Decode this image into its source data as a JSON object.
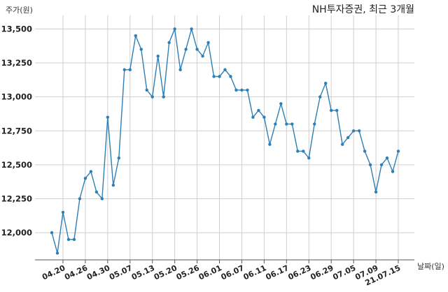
{
  "chart_data": {
    "type": "line",
    "title": "NH투자증권, 최근 3개월",
    "ylabel": "주가(원)",
    "xlabel": "날짜(일)",
    "ylim": [
      11800,
      13600
    ],
    "yticks": [
      12000,
      12250,
      12500,
      12750,
      13000,
      13250,
      13500
    ],
    "ytick_labels": [
      "12,000",
      "12,250",
      "12,500",
      "12,750",
      "13,000",
      "13,250",
      "13,500"
    ],
    "xtick_labels": [
      "04.20",
      "04.26",
      "04.30",
      "05.07",
      "05.13",
      "05.20",
      "05.26",
      "06.01",
      "06.07",
      "06.11",
      "06.17",
      "06.23",
      "06.29",
      "07.05",
      "07.09",
      "21.07.15"
    ],
    "xtick_indices": [
      2,
      6,
      10,
      14,
      18,
      22,
      26,
      30,
      34,
      38,
      42,
      46,
      50,
      54,
      58,
      62
    ],
    "grid": true,
    "color": "#2f7fb5",
    "series": [
      {
        "values": [
          12000,
          11850,
          12150,
          11950,
          11950,
          12250,
          12400,
          12450,
          12300,
          12250,
          12850,
          12350,
          12550,
          13200,
          13200,
          13450,
          13350,
          13050,
          13000,
          13300,
          13000,
          13400,
          13500,
          13200,
          13350,
          13500,
          13350,
          13300,
          13400,
          13150,
          13150,
          13200,
          13150,
          13050,
          13050,
          13050,
          12850,
          12900,
          12850,
          12650,
          12800,
          12950,
          12800,
          12800,
          12600,
          12600,
          12550,
          12800,
          13000,
          13100,
          12900,
          12900,
          12650,
          12700,
          12750,
          12750,
          12600,
          12500,
          12300,
          12500,
          12550,
          12450,
          12600
        ]
      }
    ]
  }
}
